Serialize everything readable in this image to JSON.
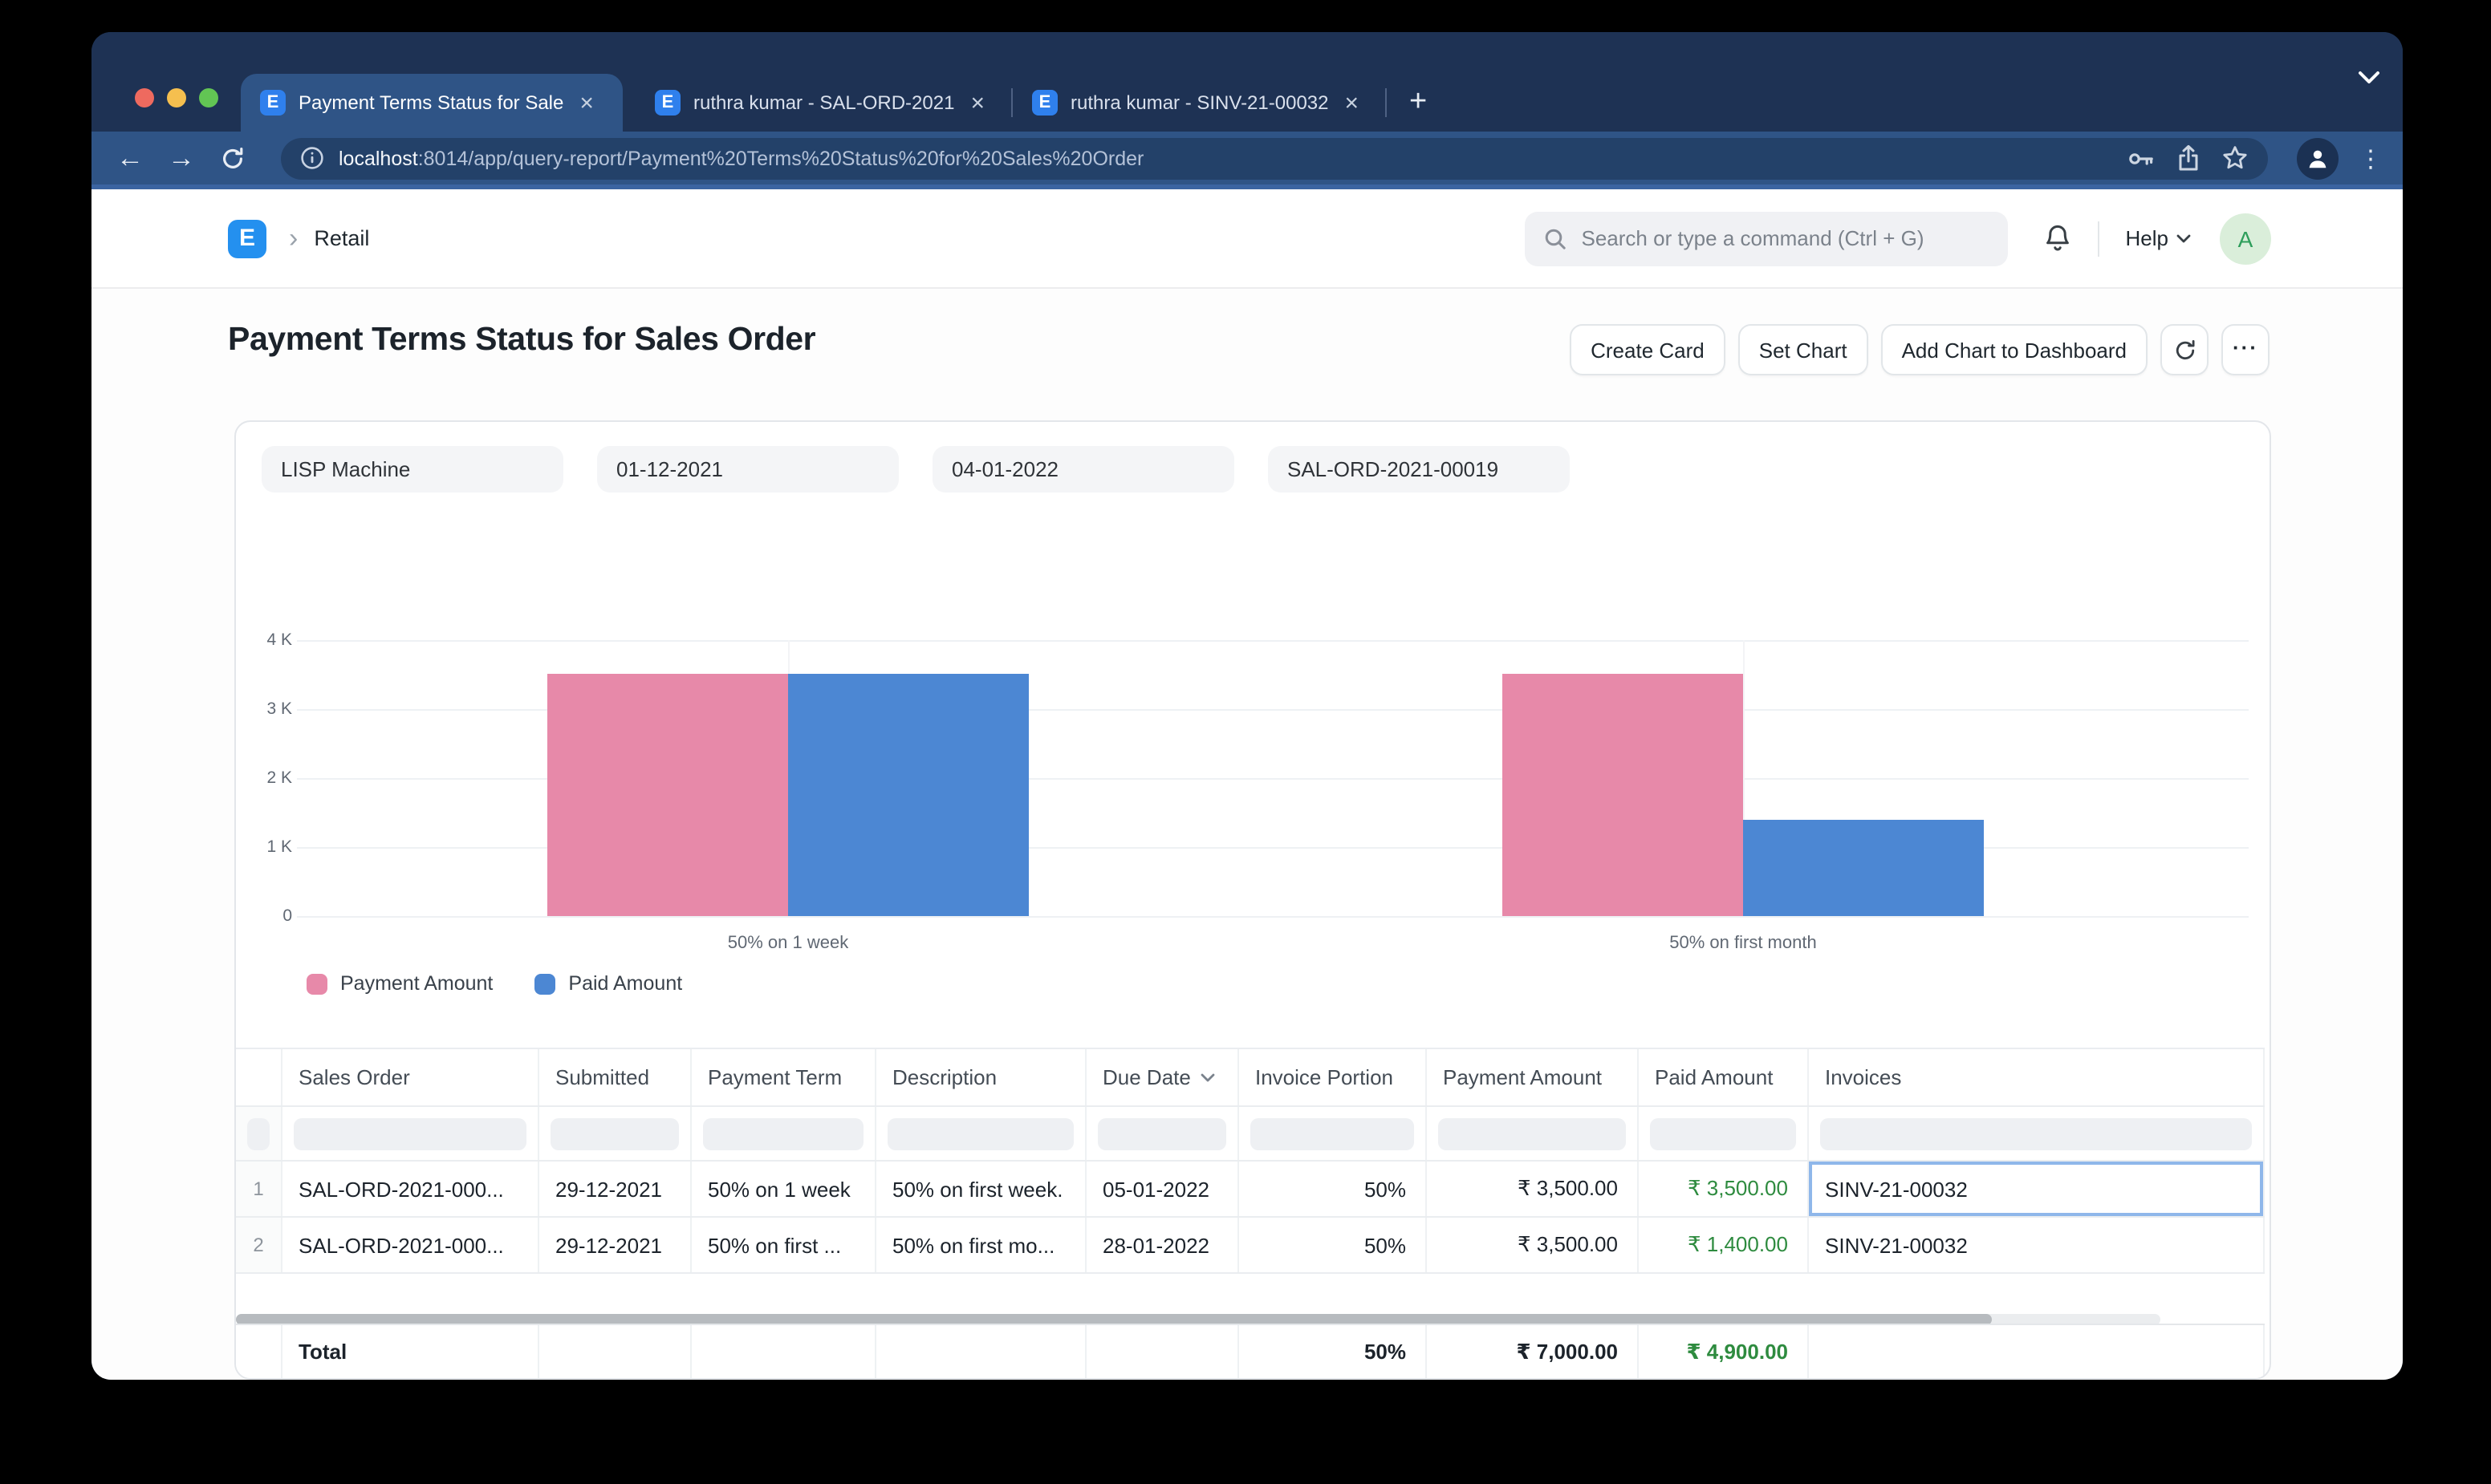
{
  "colors": {
    "accent": "#2490ef",
    "positive_text": "#2e8b3f",
    "chart_pink": "#E789A9",
    "chart_blue": "#4C87D3",
    "chrome_dark": "#1e3254",
    "chrome_toolbar": "#2f5486"
  },
  "browser": {
    "tabs": [
      {
        "title": "Payment Terms Status for Sale",
        "active": true,
        "favicon_letter": "E"
      },
      {
        "title": "ruthra kumar - SAL-ORD-2021",
        "active": false,
        "favicon_letter": "E"
      },
      {
        "title": "ruthra kumar - SINV-21-00032",
        "active": false,
        "favicon_letter": "E"
      }
    ],
    "url": {
      "host": "localhost",
      "rest": ":8014/app/query-report/Payment%20Terms%20Status%20for%20Sales%20Order"
    },
    "icons": [
      "back",
      "forward",
      "reload",
      "info",
      "key",
      "share",
      "star",
      "profile",
      "menu",
      "new-tab",
      "tab-search"
    ]
  },
  "app_header": {
    "logo_letter": "E",
    "breadcrumb": "Retail",
    "search_placeholder": "Search or type a command (Ctrl + G)",
    "help_label": "Help",
    "avatar_letter": "A"
  },
  "page": {
    "title": "Payment Terms Status for Sales Order",
    "actions": [
      "Create Card",
      "Set Chart",
      "Add Chart to Dashboard"
    ],
    "icon_actions": [
      "refresh",
      "more"
    ]
  },
  "filters": [
    "LISP Machine",
    "01-12-2021",
    "04-01-2022",
    "SAL-ORD-2021-00019"
  ],
  "chart_data": {
    "type": "bar",
    "categories": [
      "50% on 1 week",
      "50% on first month"
    ],
    "series": [
      {
        "name": "Payment Amount",
        "color": "#E789A9",
        "values": [
          3500,
          3500
        ]
      },
      {
        "name": "Paid Amount",
        "color": "#4C87D3",
        "values": [
          3500,
          1400
        ]
      }
    ],
    "ylim": [
      0,
      4000
    ],
    "yticks": [
      {
        "label": "4 K",
        "value": 4000
      },
      {
        "label": "3 K",
        "value": 3000
      },
      {
        "label": "2 K",
        "value": 2000
      },
      {
        "label": "1 K",
        "value": 1000
      },
      {
        "label": "0",
        "value": 0
      }
    ],
    "grid": true,
    "legend_position": "bottom-left",
    "title": "",
    "xlabel": "",
    "ylabel": ""
  },
  "table": {
    "columns": [
      {
        "label": ""
      },
      {
        "label": "Sales Order"
      },
      {
        "label": "Submitted"
      },
      {
        "label": "Payment Term"
      },
      {
        "label": "Description"
      },
      {
        "label": "Due Date",
        "sort_icon": "chevron-down"
      },
      {
        "label": "Invoice Portion"
      },
      {
        "label": "Payment Amount"
      },
      {
        "label": "Paid Amount"
      },
      {
        "label": "Invoices"
      }
    ],
    "rows": [
      {
        "num": "1",
        "cells": [
          "SAL-ORD-2021-000...",
          "29-12-2021",
          "50% on 1 week",
          "50% on first week.",
          "05-01-2022",
          "50%",
          "₹ 3,500.00",
          "₹ 3,500.00",
          "SINV-21-00032"
        ]
      },
      {
        "num": "2",
        "cells": [
          "SAL-ORD-2021-000...",
          "29-12-2021",
          "50% on first ...",
          "50% on first mo...",
          "28-01-2022",
          "50%",
          "₹ 3,500.00",
          "₹ 1,400.00",
          "SINV-21-00032"
        ]
      }
    ],
    "focused_cell": {
      "row": 0,
      "column": "Invoices"
    },
    "total": {
      "label": "Total",
      "invoice_portion": "50%",
      "payment_amount": "₹ 7,000.00",
      "paid_amount": "₹ 4,900.00"
    }
  }
}
